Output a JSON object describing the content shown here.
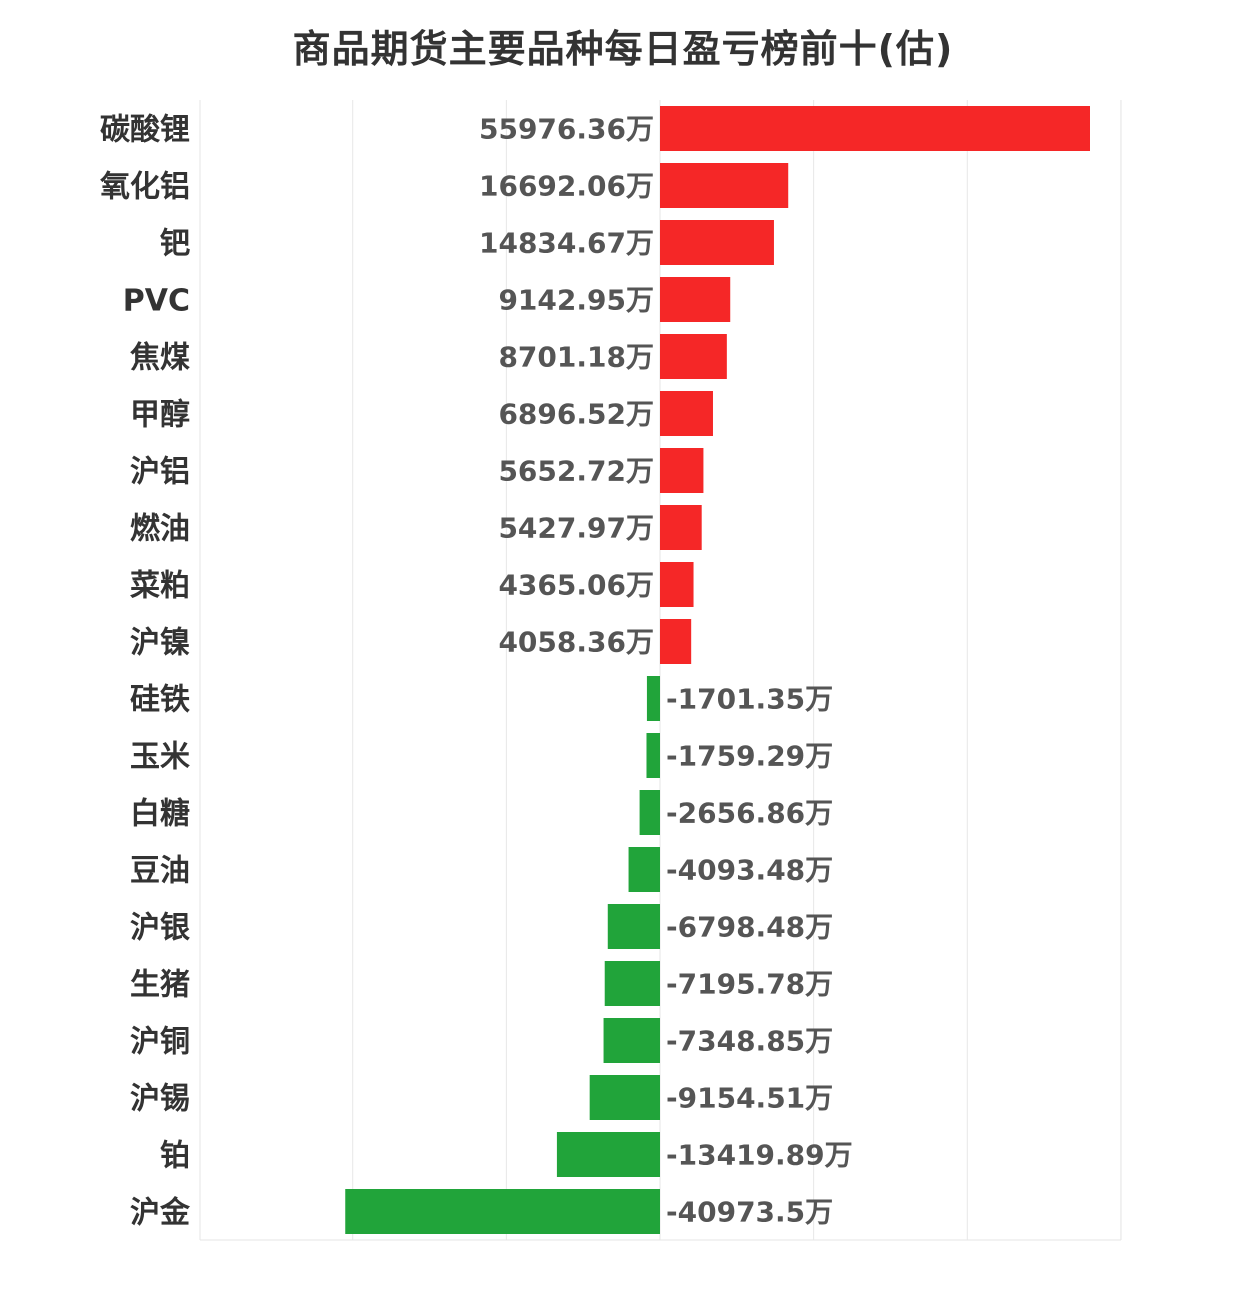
{
  "chart_data": {
    "type": "bar",
    "orientation": "horizontal",
    "title": "商品期货主要品种每日盈亏榜前十(估)",
    "unit_suffix": "万",
    "categories": [
      "碳酸锂",
      "氧化铝",
      "钯",
      "PVC",
      "焦煤",
      "甲醇",
      "沪铝",
      "燃油",
      "菜粕",
      "沪镍",
      "硅铁",
      "玉米",
      "白糖",
      "豆油",
      "沪银",
      "生猪",
      "沪铜",
      "沪锡",
      "铂",
      "沪金"
    ],
    "values": [
      55976.36,
      16692.06,
      14834.67,
      9142.95,
      8701.18,
      6896.52,
      5652.72,
      5427.97,
      4365.06,
      4058.36,
      -1701.35,
      -1759.29,
      -2656.86,
      -4093.48,
      -6798.48,
      -7195.78,
      -7348.85,
      -9154.51,
      -13419.89,
      -40973.5
    ],
    "value_labels": [
      "55976.36万",
      "16692.06万",
      "14834.67万",
      "9142.95万",
      "8701.18万",
      "6896.52万",
      "5652.72万",
      "5427.97万",
      "4365.06万",
      "4058.36万",
      "-1701.35万",
      "-1759.29万",
      "-2656.86万",
      "-4093.48万",
      "-6798.48万",
      "-7195.78万",
      "-7348.85万",
      "-9154.51万",
      "-13419.89万",
      "-40973.5万"
    ],
    "xlim": [
      -60000,
      60000
    ],
    "grid": true,
    "colors": {
      "positive": "#f52727",
      "negative": "#21a43a"
    }
  }
}
